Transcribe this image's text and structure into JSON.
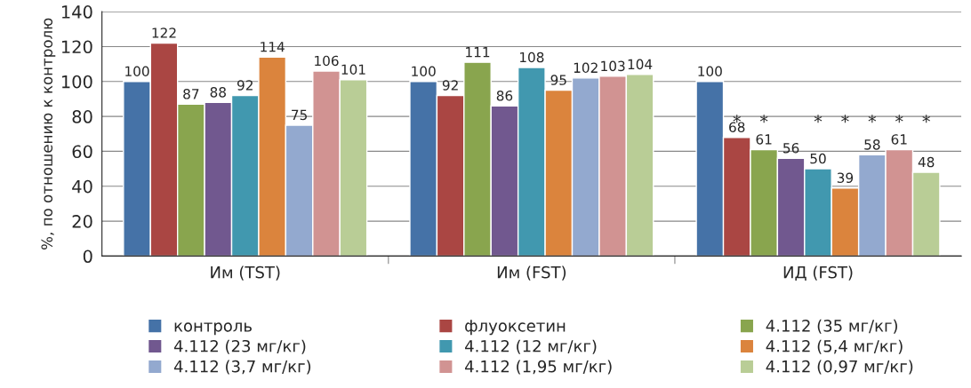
{
  "chart_data": {
    "type": "bar",
    "ylabel": "%, по отношению к контролю",
    "categories": [
      "Им (TST)",
      "Им (FST)",
      "ИД (FST)"
    ],
    "series": [
      {
        "name": "контроль",
        "color": "#4572a7",
        "values": [
          100,
          100,
          100
        ]
      },
      {
        "name": "флуоксетин",
        "color": "#aa4643",
        "values": [
          122,
          92,
          68
        ]
      },
      {
        "name": "4.112 (35 мг/кг)",
        "color": "#89a54e",
        "values": [
          87,
          111,
          61
        ]
      },
      {
        "name": "4.112 (23 мг/кг)",
        "color": "#71588f",
        "values": [
          88,
          86,
          56
        ]
      },
      {
        "name": "4.112 (12 мг/кг)",
        "color": "#4198af",
        "values": [
          92,
          108,
          50
        ]
      },
      {
        "name": "4.112 (5,4 мг/кг)",
        "color": "#db843d",
        "values": [
          114,
          95,
          39
        ]
      },
      {
        "name": "4.112 (3,7 мг/кг)",
        "color": "#93a9cf",
        "values": [
          75,
          102,
          58
        ]
      },
      {
        "name": "4.112 (1,95 мг/кг)",
        "color": "#d19392",
        "values": [
          106,
          103,
          61
        ]
      },
      {
        "name": "4.112 (0,97 мг/кг)",
        "color": "#b9cd96",
        "values": [
          101,
          104,
          48
        ]
      }
    ],
    "annotations": [
      " ** *****"
    ],
    "ylim": [
      0,
      140
    ],
    "yticks": [
      0,
      20,
      40,
      60,
      80,
      100,
      120,
      140
    ],
    "grid": "y",
    "legend": "bottom",
    "data_labels": true
  }
}
